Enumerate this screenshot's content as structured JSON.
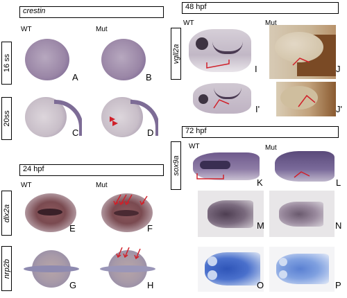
{
  "left": {
    "section1": {
      "gene": "crestin",
      "wt": "WT",
      "mut": "Mut",
      "stages": [
        "16 ss",
        "20ss"
      ],
      "panels": [
        "A",
        "B",
        "C",
        "D"
      ]
    },
    "section2": {
      "stage": "24 hpf",
      "wt": "WT",
      "mut": "Mut",
      "genes": [
        "dlx2a",
        "nrp2b"
      ],
      "panels": [
        "E",
        "F",
        "G",
        "H"
      ]
    }
  },
  "right": {
    "section1": {
      "stage": "48 hpf",
      "wt": "WT",
      "mut": "Mut",
      "gene": "vgll2a",
      "panels": [
        "I",
        "J",
        "I'",
        "J'"
      ]
    },
    "section2": {
      "stage": "72 hpf",
      "wt": "WT",
      "mut": "Mut",
      "gene": "sox9a",
      "panels": [
        "K",
        "L",
        "M",
        "N",
        "O",
        "P"
      ]
    }
  },
  "colors": {
    "stain": "#6e5a8c",
    "alcian": "#2f55b8",
    "brown": "#7a4a25",
    "arrow": "#d0202a"
  }
}
